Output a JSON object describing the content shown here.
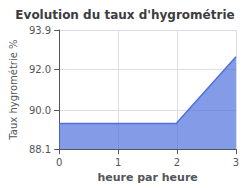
{
  "chart_data": {
    "type": "area",
    "title": "Evolution du taux d'hygrométrie",
    "xlabel": "heure par heure",
    "ylabel": "Taux hygrométrie %",
    "x": [
      0,
      1,
      2,
      2,
      3
    ],
    "values": [
      89.35,
      89.35,
      89.35,
      89.4,
      92.6
    ],
    "xlim": [
      0,
      3
    ],
    "xticks": [
      0,
      1,
      2,
      3
    ],
    "ylim": [
      88.1,
      93.9
    ],
    "yticks": [
      88.1,
      {
        "value": 90,
        "label": "90.0"
      },
      {
        "value": 92,
        "label": "92.0"
      },
      93.9
    ],
    "grid": true
  }
}
